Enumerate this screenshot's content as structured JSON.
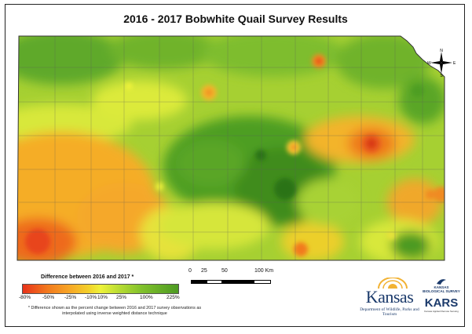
{
  "title": "2016 - 2017 Bobwhite Quail Survey Results",
  "legend": {
    "title": "Difference between 2016 and 2017 *",
    "ticks": [
      "-80%",
      "-50%",
      "-25%",
      "-10%",
      "10%",
      "25%",
      "100%",
      "225%"
    ],
    "colors": [
      "#e8321a",
      "#f27a1e",
      "#f7a626",
      "#f3cf2a",
      "#eef23a",
      "#b8dc33",
      "#82c22c",
      "#4c9a22"
    ],
    "footnote": "* Difference shown as the percent change between 2016 and 2017 survey observations as interpolated using inverse weighted distance technique"
  },
  "scale": {
    "labels": [
      "0",
      "25",
      "50",
      "100 Km"
    ]
  },
  "compass": {
    "n": "N",
    "s": "S",
    "e": "E",
    "w": "W"
  },
  "logos": {
    "kansas": "Kansas",
    "kansas_sub": "Department of Wildlife, Parks and Tourism",
    "kbs": "KANSAS BIOLOGICAL SURVEY",
    "kars": "KARS",
    "kars_sub": "Kansas Applied Remote Sensing"
  }
}
